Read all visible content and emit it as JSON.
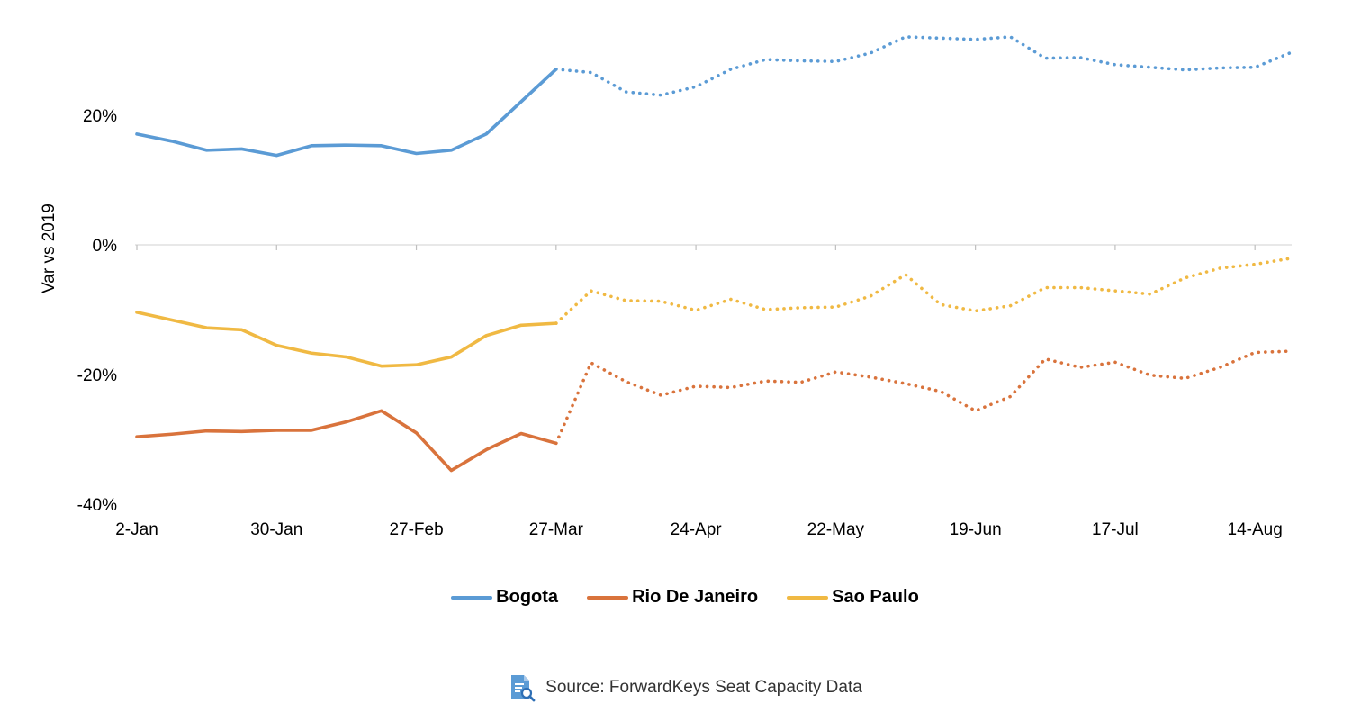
{
  "chart_data": {
    "type": "line",
    "title": "",
    "xlabel": "",
    "ylabel": "Var vs 2019",
    "y_unit": "%",
    "ylim": [
      -40,
      35
    ],
    "y_ticks": [
      {
        "value": 20,
        "label": "20%"
      },
      {
        "value": 0,
        "label": "0%"
      },
      {
        "value": -20,
        "label": "-20%"
      },
      {
        "value": -40,
        "label": "-40%"
      }
    ],
    "x_ticks": [
      "2-Jan",
      "30-Jan",
      "27-Feb",
      "27-Mar",
      "24-Apr",
      "22-May",
      "19-Jun",
      "17-Jul",
      "14-Aug"
    ],
    "x_ticks_every": 4,
    "x": [
      "2-Jan",
      "9-Jan",
      "16-Jan",
      "23-Jan",
      "30-Jan",
      "6-Feb",
      "13-Feb",
      "20-Feb",
      "27-Feb",
      "6-Mar",
      "13-Mar",
      "20-Mar",
      "27-Mar",
      "3-Apr",
      "10-Apr",
      "17-Apr",
      "24-Apr",
      "1-May",
      "8-May",
      "15-May",
      "22-May",
      "29-May",
      "5-Jun",
      "12-Jun",
      "19-Jun",
      "26-Jun",
      "3-Jul",
      "10-Jul",
      "17-Jul",
      "24-Jul",
      "31-Jul",
      "7-Aug",
      "14-Aug",
      "21-Aug"
    ],
    "actual_until_index": 12,
    "series": [
      {
        "name": "Bogota",
        "color": "#5b9bd5",
        "values": [
          17.1,
          16.0,
          14.6,
          14.8,
          13.8,
          15.3,
          15.4,
          15.3,
          14.1,
          14.6,
          17.1,
          22.1,
          27.1,
          26.6,
          23.6,
          23.1,
          24.4,
          27.1,
          28.6,
          28.4,
          28.3,
          29.6,
          32.1,
          31.9,
          31.7,
          32.1,
          28.8,
          28.9,
          27.8,
          27.4,
          27.0,
          27.3,
          27.4,
          29.6
        ]
      },
      {
        "name": "Rio De Janeiro",
        "color": "#d9733c",
        "values": [
          -29.6,
          -29.2,
          -28.7,
          -28.8,
          -28.6,
          -28.6,
          -27.3,
          -25.6,
          -29.0,
          -34.8,
          -31.6,
          -29.1,
          -30.6,
          -18.2,
          -21.1,
          -23.2,
          -21.8,
          -22.0,
          -21.0,
          -21.2,
          -19.6,
          -20.4,
          -21.4,
          -22.6,
          -25.6,
          -23.4,
          -17.6,
          -18.9,
          -18.1,
          -20.1,
          -20.6,
          -18.9,
          -16.6,
          -16.4
        ]
      },
      {
        "name": "Sao Paulo",
        "color": "#f0b943",
        "values": [
          -10.4,
          -11.6,
          -12.8,
          -13.1,
          -15.5,
          -16.7,
          -17.3,
          -18.7,
          -18.5,
          -17.3,
          -14.0,
          -12.4,
          -12.1,
          -7.1,
          -8.6,
          -8.7,
          -10.1,
          -8.4,
          -10.0,
          -9.7,
          -9.6,
          -7.9,
          -4.6,
          -9.2,
          -10.2,
          -9.4,
          -6.6,
          -6.6,
          -7.1,
          -7.6,
          -5.1,
          -3.6,
          -3.0,
          -2.1
        ]
      }
    ],
    "legend_position": "bottom",
    "grid": false
  },
  "source": {
    "icon": "document-search-icon",
    "text": "Source: ForwardKeys Seat Capacity Data"
  }
}
